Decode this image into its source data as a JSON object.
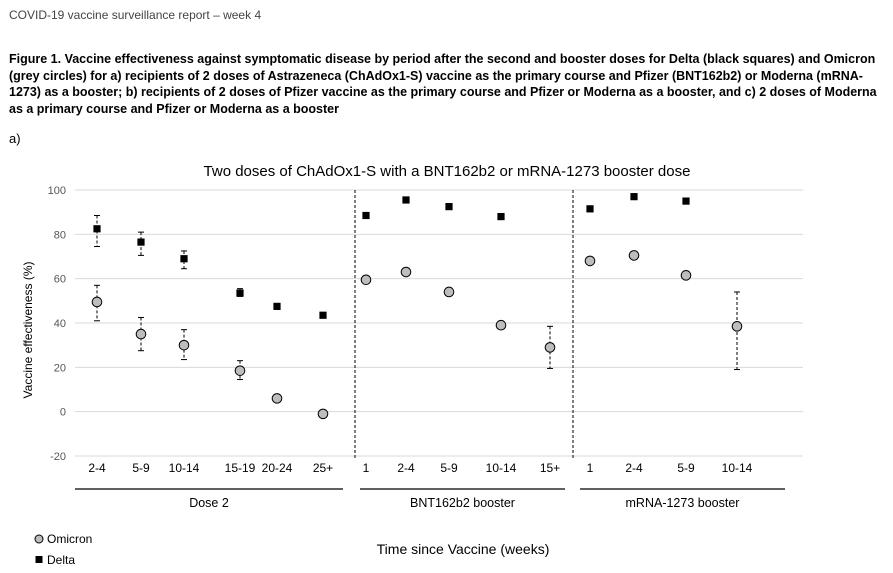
{
  "report_header": "COVID-19 vaccine surveillance report – week 4",
  "figure_caption": "Figure 1. Vaccine effectiveness against symptomatic disease by period after the second and booster doses for Delta (black squares) and Omicron (grey circles) for a) recipients of 2 doses of Astrazeneca (ChAdOx1-S) vaccine as the primary course and Pfizer (BNT162b2) or Moderna (mRNA-1273) as a booster; b) recipients of 2 doses of Pfizer vaccine as the primary course and Pfizer or Moderna as a booster, and c) 2 doses of Moderna as a primary course and Pfizer or Moderna as a booster",
  "panel_label": "a)",
  "colors": {
    "omicron_fill": "#bdbdbd",
    "delta_fill": "#000000",
    "grid": "#d9d9d9"
  },
  "chart_data": {
    "type": "scatter",
    "title": "Two doses of ChAdOx1-S with a BNT162b2 or mRNA-1273 booster dose",
    "ylabel": "Vaccine effectiveness (%)",
    "xlabel": "Time since Vaccine (weeks)",
    "ylim": [
      -20,
      100
    ],
    "yticks": [
      100,
      80,
      60,
      40,
      20,
      0,
      -20
    ],
    "grid": true,
    "legend_position": "bottom-left",
    "categories": [
      "2-4",
      "5-9",
      "10-14",
      "15-19",
      "20-24",
      "25+",
      "1",
      "2-4",
      "5-9",
      "10-14",
      "15+",
      "1",
      "2-4",
      "5-9",
      "10-14"
    ],
    "groups": [
      {
        "label": "Dose 2",
        "start": 0,
        "end": 5
      },
      {
        "label": "BNT162b2 booster",
        "start": 6,
        "end": 10
      },
      {
        "label": "mRNA-1273 booster",
        "start": 11,
        "end": 14
      }
    ],
    "series": [
      {
        "name": "Omicron",
        "marker": "circle",
        "values": [
          49.5,
          35,
          30,
          18.5,
          6,
          -1,
          59.5,
          63,
          54,
          39,
          29,
          68,
          70.5,
          61.5,
          38.5
        ],
        "ci_low": [
          41,
          27.5,
          23.5,
          14.5,
          null,
          null,
          null,
          null,
          null,
          null,
          19.5,
          null,
          null,
          null,
          19
        ],
        "ci_high": [
          57,
          42.5,
          37,
          23,
          null,
          null,
          null,
          null,
          null,
          null,
          38.5,
          null,
          null,
          null,
          54
        ]
      },
      {
        "name": "Delta",
        "marker": "square",
        "values": [
          82.5,
          76.5,
          69,
          53.5,
          47.5,
          43.5,
          88.5,
          95.5,
          92.5,
          88,
          null,
          91.5,
          97,
          95,
          null
        ],
        "ci_low": [
          74.5,
          70.5,
          64.5,
          52,
          null,
          null,
          null,
          null,
          null,
          null,
          null,
          null,
          null,
          null,
          null
        ],
        "ci_high": [
          88.5,
          81,
          72.5,
          55.5,
          null,
          null,
          null,
          null,
          null,
          null,
          null,
          null,
          null,
          null,
          null
        ]
      }
    ]
  }
}
